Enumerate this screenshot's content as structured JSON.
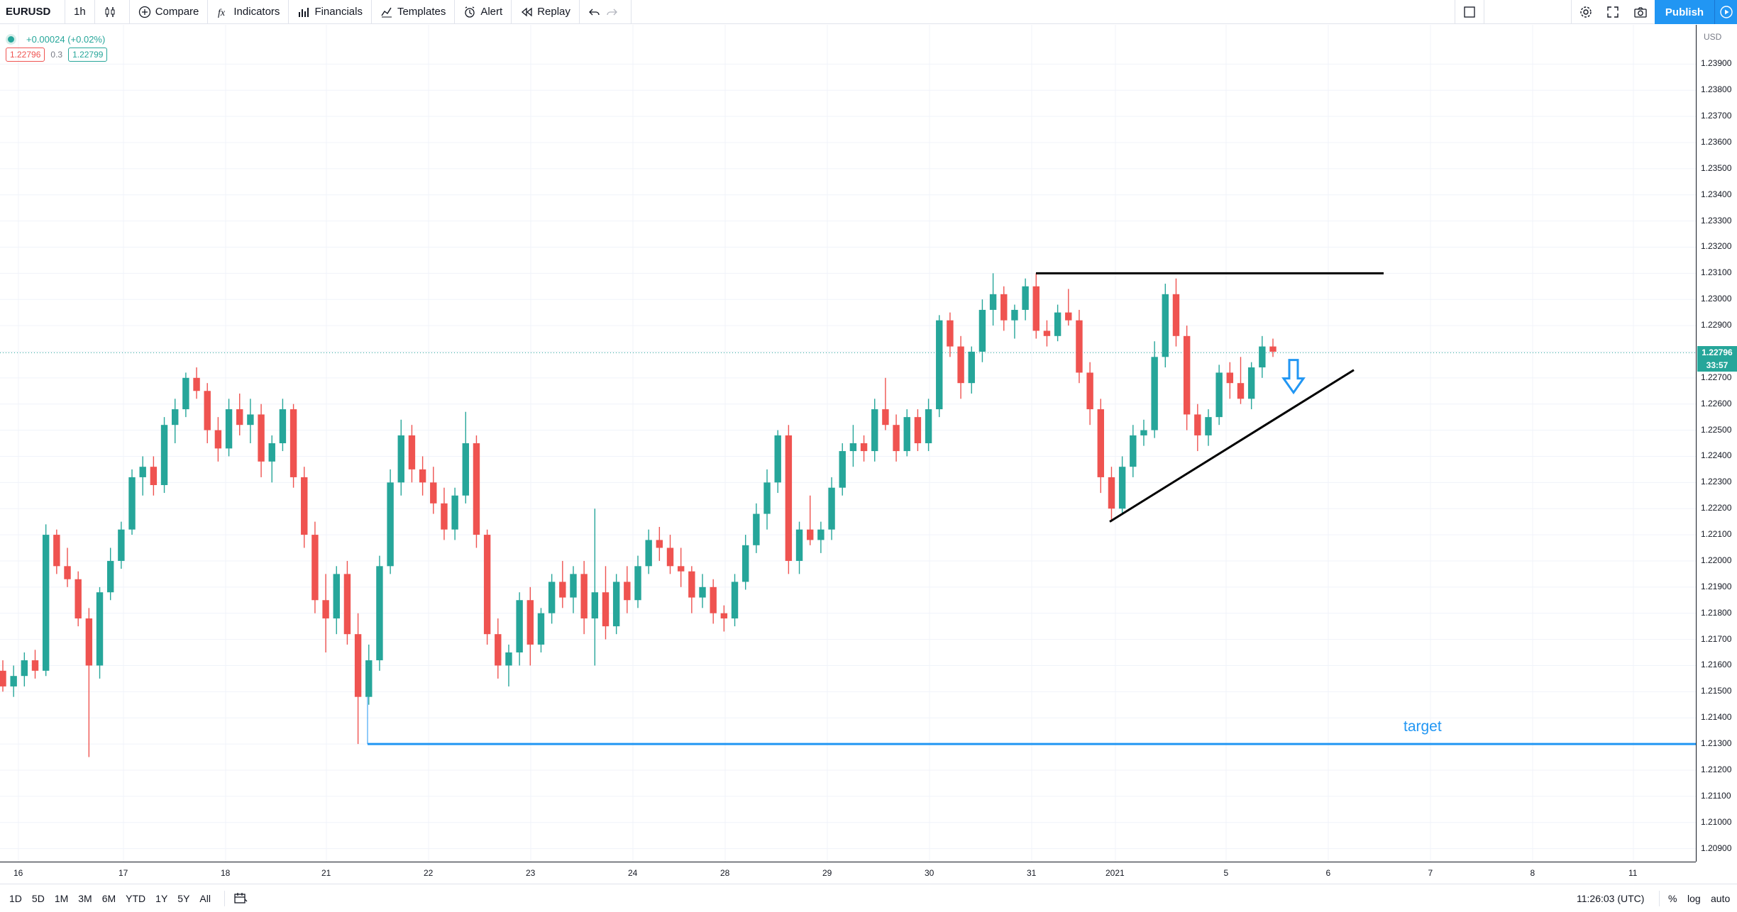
{
  "toolbar": {
    "symbol": "EURUSD",
    "interval": "1h",
    "compare": "Compare",
    "indicators": "Indicators",
    "financials": "Financials",
    "templates": "Templates",
    "alert": "Alert",
    "replay": "Replay",
    "publish": "Publish"
  },
  "legend": {
    "change": "+0.00024 (+0.02%)",
    "bid": "1.22796",
    "spread": "0.3",
    "ask": "1.22799"
  },
  "price_axis": {
    "currency": "USD",
    "last_price": "1.22796",
    "countdown": "33:57",
    "ticks": [
      "1.23900",
      "1.23800",
      "1.23700",
      "1.23600",
      "1.23500",
      "1.23400",
      "1.23300",
      "1.23200",
      "1.23100",
      "1.23000",
      "1.22900",
      "1.22800",
      "1.22700",
      "1.22600",
      "1.22500",
      "1.22400",
      "1.22300",
      "1.22200",
      "1.22100",
      "1.22000",
      "1.21900",
      "1.21800",
      "1.21700",
      "1.21600",
      "1.21500",
      "1.21400",
      "1.21300",
      "1.21200",
      "1.21100",
      "1.21000",
      "1.20900"
    ]
  },
  "time_axis": {
    "labels": [
      "16",
      "17",
      "18",
      "21",
      "22",
      "23",
      "24",
      "28",
      "29",
      "30",
      "31",
      "2021",
      "5",
      "6",
      "7",
      "8",
      "11"
    ]
  },
  "annotation": {
    "target_label": "target"
  },
  "bottom": {
    "ranges": [
      "1D",
      "5D",
      "1M",
      "3M",
      "6M",
      "YTD",
      "1Y",
      "5Y",
      "All"
    ],
    "clock": "11:26:03 (UTC)",
    "percent": "%",
    "log": "log",
    "auto": "auto"
  },
  "colors": {
    "up": "#26a69a",
    "down": "#ef5350",
    "accent": "#2196f3"
  },
  "chart_data": {
    "type": "candlestick",
    "symbol": "EURUSD",
    "interval": "1h",
    "ylim": [
      1.2085,
      1.2405
    ],
    "x_labels": [
      "16",
      "17",
      "18",
      "21",
      "22",
      "23",
      "24",
      "28",
      "29",
      "30",
      "31",
      "2021",
      "5",
      "6",
      "7",
      "8",
      "11"
    ],
    "series": [
      {
        "name": "EURUSD",
        "ohlc": [
          [
            1.2158,
            1.2162,
            1.215,
            1.2152
          ],
          [
            1.2152,
            1.216,
            1.2148,
            1.2156
          ],
          [
            1.2156,
            1.2165,
            1.2152,
            1.2162
          ],
          [
            1.2162,
            1.2166,
            1.2155,
            1.2158
          ],
          [
            1.2158,
            1.2214,
            1.2156,
            1.221
          ],
          [
            1.221,
            1.2212,
            1.2195,
            1.2198
          ],
          [
            1.2198,
            1.2205,
            1.219,
            1.2193
          ],
          [
            1.2193,
            1.2196,
            1.2175,
            1.2178
          ],
          [
            1.2178,
            1.2182,
            1.2125,
            1.216
          ],
          [
            1.216,
            1.219,
            1.2155,
            1.2188
          ],
          [
            1.2188,
            1.2205,
            1.2185,
            1.22
          ],
          [
            1.22,
            1.2215,
            1.2197,
            1.2212
          ],
          [
            1.2212,
            1.2235,
            1.221,
            1.2232
          ],
          [
            1.2232,
            1.224,
            1.2225,
            1.2236
          ],
          [
            1.2236,
            1.224,
            1.2225,
            1.2229
          ],
          [
            1.2229,
            1.2255,
            1.2226,
            1.2252
          ],
          [
            1.2252,
            1.2262,
            1.2245,
            1.2258
          ],
          [
            1.2258,
            1.2272,
            1.2255,
            1.227
          ],
          [
            1.227,
            1.2274,
            1.2262,
            1.2265
          ],
          [
            1.2265,
            1.2268,
            1.2245,
            1.225
          ],
          [
            1.225,
            1.2255,
            1.2238,
            1.2243
          ],
          [
            1.2243,
            1.2262,
            1.224,
            1.2258
          ],
          [
            1.2258,
            1.2264,
            1.2248,
            1.2252
          ],
          [
            1.2252,
            1.2262,
            1.2245,
            1.2256
          ],
          [
            1.2256,
            1.226,
            1.2232,
            1.2238
          ],
          [
            1.2238,
            1.2248,
            1.223,
            1.2245
          ],
          [
            1.2245,
            1.2262,
            1.2242,
            1.2258
          ],
          [
            1.2258,
            1.226,
            1.2228,
            1.2232
          ],
          [
            1.2232,
            1.2236,
            1.2205,
            1.221
          ],
          [
            1.221,
            1.2215,
            1.218,
            1.2185
          ],
          [
            1.2185,
            1.2195,
            1.2165,
            1.2178
          ],
          [
            1.2178,
            1.2198,
            1.2172,
            1.2195
          ],
          [
            1.2195,
            1.22,
            1.2168,
            1.2172
          ],
          [
            1.2172,
            1.218,
            1.213,
            1.2148
          ],
          [
            1.2148,
            1.2168,
            1.2145,
            1.2162
          ],
          [
            1.2162,
            1.2202,
            1.2158,
            1.2198
          ],
          [
            1.2198,
            1.2235,
            1.2195,
            1.223
          ],
          [
            1.223,
            1.2254,
            1.2225,
            1.2248
          ],
          [
            1.2248,
            1.2252,
            1.223,
            1.2235
          ],
          [
            1.2235,
            1.224,
            1.2225,
            1.223
          ],
          [
            1.223,
            1.2236,
            1.2218,
            1.2222
          ],
          [
            1.2222,
            1.2228,
            1.2208,
            1.2212
          ],
          [
            1.2212,
            1.2228,
            1.2208,
            1.2225
          ],
          [
            1.2225,
            1.2257,
            1.2222,
            1.2245
          ],
          [
            1.2245,
            1.2248,
            1.2205,
            1.221
          ],
          [
            1.221,
            1.2212,
            1.2168,
            1.2172
          ],
          [
            1.2172,
            1.2178,
            1.2155,
            1.216
          ],
          [
            1.216,
            1.2168,
            1.2152,
            1.2165
          ],
          [
            1.2165,
            1.2188,
            1.216,
            1.2185
          ],
          [
            1.2185,
            1.219,
            1.216,
            1.2168
          ],
          [
            1.2168,
            1.2182,
            1.2165,
            1.218
          ],
          [
            1.218,
            1.2195,
            1.2176,
            1.2192
          ],
          [
            1.2192,
            1.22,
            1.2182,
            1.2186
          ],
          [
            1.2186,
            1.2198,
            1.218,
            1.2195
          ],
          [
            1.2195,
            1.22,
            1.2172,
            1.2178
          ],
          [
            1.2178,
            1.222,
            1.216,
            1.2188
          ],
          [
            1.2188,
            1.2198,
            1.217,
            1.2175
          ],
          [
            1.2175,
            1.2195,
            1.2172,
            1.2192
          ],
          [
            1.2192,
            1.2198,
            1.218,
            1.2185
          ],
          [
            1.2185,
            1.2202,
            1.2182,
            1.2198
          ],
          [
            1.2198,
            1.2212,
            1.2195,
            1.2208
          ],
          [
            1.2208,
            1.2213,
            1.22,
            1.2205
          ],
          [
            1.2205,
            1.221,
            1.2195,
            1.2198
          ],
          [
            1.2198,
            1.2205,
            1.219,
            1.2196
          ],
          [
            1.2196,
            1.2198,
            1.218,
            1.2186
          ],
          [
            1.2186,
            1.2195,
            1.2182,
            1.219
          ],
          [
            1.219,
            1.2193,
            1.2176,
            1.218
          ],
          [
            1.218,
            1.2183,
            1.2173,
            1.2178
          ],
          [
            1.2178,
            1.2195,
            1.2175,
            1.2192
          ],
          [
            1.2192,
            1.221,
            1.2189,
            1.2206
          ],
          [
            1.2206,
            1.2222,
            1.2203,
            1.2218
          ],
          [
            1.2218,
            1.2235,
            1.2212,
            1.223
          ],
          [
            1.223,
            1.225,
            1.2226,
            1.2248
          ],
          [
            1.2248,
            1.2252,
            1.2195,
            1.22
          ],
          [
            1.22,
            1.2215,
            1.2195,
            1.2212
          ],
          [
            1.2212,
            1.2225,
            1.2206,
            1.2208
          ],
          [
            1.2208,
            1.2215,
            1.2203,
            1.2212
          ],
          [
            1.2212,
            1.2232,
            1.2208,
            1.2228
          ],
          [
            1.2228,
            1.2245,
            1.2225,
            1.2242
          ],
          [
            1.2242,
            1.2252,
            1.2236,
            1.2245
          ],
          [
            1.2245,
            1.2248,
            1.2238,
            1.2242
          ],
          [
            1.2242,
            1.2262,
            1.2238,
            1.2258
          ],
          [
            1.2258,
            1.227,
            1.225,
            1.2252
          ],
          [
            1.2252,
            1.2256,
            1.2238,
            1.2242
          ],
          [
            1.2242,
            1.2258,
            1.224,
            1.2255
          ],
          [
            1.2255,
            1.2258,
            1.2242,
            1.2245
          ],
          [
            1.2245,
            1.2262,
            1.2242,
            1.2258
          ],
          [
            1.2258,
            1.2294,
            1.2255,
            1.2292
          ],
          [
            1.2292,
            1.2295,
            1.2278,
            1.2282
          ],
          [
            1.2282,
            1.2286,
            1.2262,
            1.2268
          ],
          [
            1.2268,
            1.2282,
            1.2264,
            1.228
          ],
          [
            1.228,
            1.23,
            1.2276,
            1.2296
          ],
          [
            1.2296,
            1.231,
            1.229,
            1.2302
          ],
          [
            1.2302,
            1.2305,
            1.2288,
            1.2292
          ],
          [
            1.2292,
            1.2298,
            1.2285,
            1.2296
          ],
          [
            1.2296,
            1.2308,
            1.2292,
            1.2305
          ],
          [
            1.2305,
            1.231,
            1.2285,
            1.2288
          ],
          [
            1.2288,
            1.2292,
            1.2282,
            1.2286
          ],
          [
            1.2286,
            1.2298,
            1.2284,
            1.2295
          ],
          [
            1.2295,
            1.2304,
            1.229,
            1.2292
          ],
          [
            1.2292,
            1.2296,
            1.2268,
            1.2272
          ],
          [
            1.2272,
            1.2276,
            1.2252,
            1.2258
          ],
          [
            1.2258,
            1.2262,
            1.2226,
            1.2232
          ],
          [
            1.2232,
            1.2236,
            1.2215,
            1.222
          ],
          [
            1.222,
            1.224,
            1.2218,
            1.2236
          ],
          [
            1.2236,
            1.2252,
            1.2232,
            1.2248
          ],
          [
            1.2248,
            1.2254,
            1.2244,
            1.225
          ],
          [
            1.225,
            1.2284,
            1.2247,
            1.2278
          ],
          [
            1.2278,
            1.2306,
            1.2274,
            1.2302
          ],
          [
            1.2302,
            1.2308,
            1.2282,
            1.2286
          ],
          [
            1.2286,
            1.229,
            1.225,
            1.2256
          ],
          [
            1.2256,
            1.226,
            1.2242,
            1.2248
          ],
          [
            1.2248,
            1.2258,
            1.2244,
            1.2255
          ],
          [
            1.2255,
            1.2275,
            1.2252,
            1.2272
          ],
          [
            1.2272,
            1.2276,
            1.2262,
            1.2268
          ],
          [
            1.2268,
            1.2278,
            1.226,
            1.2262
          ],
          [
            1.2262,
            1.2276,
            1.2258,
            1.2274
          ],
          [
            1.2274,
            1.2286,
            1.227,
            1.2282
          ],
          [
            1.2282,
            1.2285,
            1.2278,
            1.228
          ]
        ]
      }
    ],
    "lines": [
      {
        "name": "resistance",
        "price": 1.231
      },
      {
        "name": "support-trendline",
        "from": 1.2215,
        "to": 1.2273
      },
      {
        "name": "target",
        "price": 1.213
      }
    ]
  }
}
